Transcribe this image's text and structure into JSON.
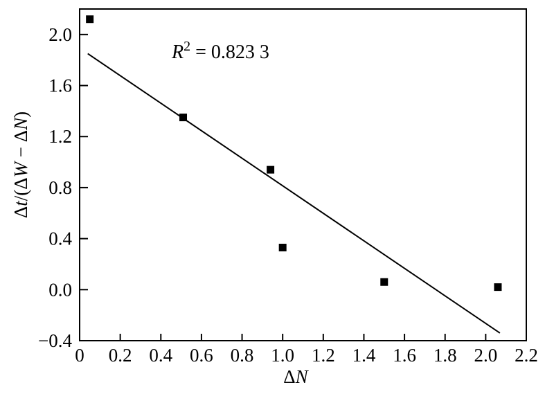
{
  "figure": {
    "background": "#ffffff",
    "foreground": "#000000"
  },
  "chart_data": {
    "type": "scatter",
    "title": "",
    "xlabel": "ΔN",
    "ylabel": "Δt/(ΔW − ΔN)",
    "annotation": "R² = 0.823 3",
    "r_squared": 0.8233,
    "xlim": [
      0,
      2.2
    ],
    "ylim": [
      -0.4,
      2.2
    ],
    "grid": false,
    "legend": "none",
    "axis_color": "#000000",
    "marker": "filled-square",
    "marker_color": "#000000",
    "xticks": [
      {
        "v": 0.0,
        "label": "0"
      },
      {
        "v": 0.2,
        "label": "0.2"
      },
      {
        "v": 0.4,
        "label": "0.4"
      },
      {
        "v": 0.6,
        "label": "0.6"
      },
      {
        "v": 0.8,
        "label": "0.8"
      },
      {
        "v": 1.0,
        "label": "1.0"
      },
      {
        "v": 1.2,
        "label": "1.2"
      },
      {
        "v": 1.4,
        "label": "1.4"
      },
      {
        "v": 1.6,
        "label": "1.6"
      },
      {
        "v": 1.8,
        "label": "1.8"
      },
      {
        "v": 2.0,
        "label": "2.0"
      },
      {
        "v": 2.2,
        "label": "2.2"
      }
    ],
    "yticks": [
      {
        "v": -0.4,
        "label": "−0.4"
      },
      {
        "v": 0.0,
        "label": "0.0"
      },
      {
        "v": 0.4,
        "label": "0.4"
      },
      {
        "v": 0.8,
        "label": "0.8"
      },
      {
        "v": 1.2,
        "label": "1.2"
      },
      {
        "v": 1.6,
        "label": "1.6"
      },
      {
        "v": 2.0,
        "label": "2.0"
      }
    ],
    "series": [
      {
        "name": "scatter-points",
        "points": [
          [
            0.05,
            2.12
          ],
          [
            0.51,
            1.35
          ],
          [
            0.94,
            0.94
          ],
          [
            1.0,
            0.33
          ],
          [
            1.5,
            0.06
          ],
          [
            2.06,
            0.02
          ]
        ]
      }
    ],
    "trendline": {
      "x1": 0.04,
      "y1": 1.85,
      "x2": 2.07,
      "y2": -0.34
    },
    "xlabel_parts": [
      {
        "text": "Δ",
        "italic": false
      },
      {
        "text": "N",
        "italic": true
      }
    ],
    "ylabel_parts": [
      {
        "text": "Δ",
        "italic": false
      },
      {
        "text": "t",
        "italic": true
      },
      {
        "text": "/(Δ",
        "italic": false
      },
      {
        "text": "W",
        "italic": true
      },
      {
        "text": " − Δ",
        "italic": false
      },
      {
        "text": "N",
        "italic": true
      },
      {
        "text": ")",
        "italic": false
      }
    ],
    "annotation_parts": [
      {
        "text": "R",
        "italic": true
      },
      {
        "text": "2",
        "sup": true
      },
      {
        "text": " = 0.823 3",
        "italic": false
      }
    ]
  }
}
